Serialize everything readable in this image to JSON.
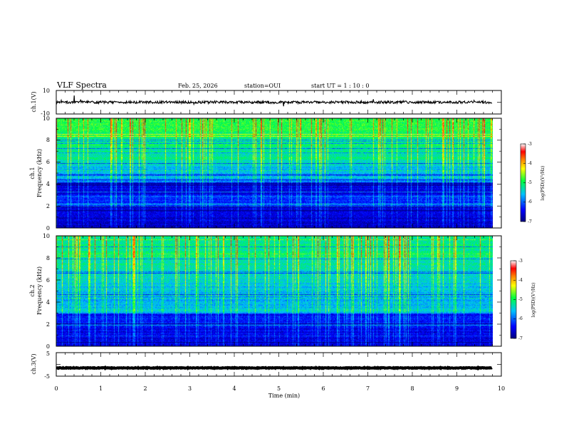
{
  "header": {
    "title": "VLF Spectra",
    "date": "Feb. 25, 2026",
    "station": "station=OUI",
    "start_time": "start  UT =   1 : 10 : 0"
  },
  "colors": {
    "waveform": "#000000",
    "colormap": [
      "#000080",
      "#0000ff",
      "#00c0ff",
      "#00ff40",
      "#ffff00",
      "#ff8000",
      "#ff0000",
      "#ffffff"
    ]
  },
  "chart_data": [
    {
      "type": "line",
      "name": "ch1-waveform",
      "ylabel": "ch.1(V)",
      "ylim": [
        -10,
        10
      ],
      "y_ticklabels": [
        "10",
        "-10"
      ],
      "xlim": [
        0,
        10
      ],
      "baseline": 0,
      "values": []
    },
    {
      "type": "heatmap",
      "name": "ch1-spectrogram",
      "ylabel_line1": "ch.1",
      "ylabel_line2": "Frequency (kHz)",
      "ylim": [
        0,
        10
      ],
      "y_ticks": [
        0,
        2,
        4,
        6,
        8,
        10
      ],
      "y_ticklabels": [
        "0",
        "2",
        "4",
        "6",
        "8",
        "10"
      ],
      "xlim": [
        0,
        10
      ],
      "data_end_min": 9.8,
      "colorbar": {
        "label": "log(PSD)(V²/Hz)",
        "range": [
          -7,
          -3
        ],
        "ticks": [
          "-3",
          "-4",
          "-5",
          "-6",
          "-7"
        ]
      }
    },
    {
      "type": "heatmap",
      "name": "ch2-spectrogram",
      "ylabel_line1": "ch.2",
      "ylabel_line2": "Frequency (kHz)",
      "ylim": [
        0,
        10
      ],
      "y_ticks": [
        0,
        2,
        4,
        6,
        8,
        10
      ],
      "y_ticklabels": [
        "0",
        "2",
        "4",
        "6",
        "8",
        "10"
      ],
      "xlim": [
        0,
        10
      ],
      "data_end_min": 9.8,
      "colorbar": {
        "label": "log(PSD)(V²/Hz)",
        "range": [
          -7,
          -3
        ],
        "ticks": [
          "-3",
          "-4",
          "-5",
          "-6",
          "-7"
        ]
      }
    },
    {
      "type": "line",
      "name": "ch3-waveform",
      "ylabel": "ch.3(V)",
      "ylim": [
        -5,
        5
      ],
      "y_ticklabels": [
        "5",
        "-5"
      ],
      "xlim": [
        0,
        10
      ],
      "baseline": -1.5,
      "values": []
    }
  ],
  "xaxis": {
    "label": "Time (min)",
    "ticks": [
      0,
      1,
      2,
      3,
      4,
      5,
      6,
      7,
      8,
      9,
      10
    ],
    "ticklabels": [
      "0",
      "1",
      "2",
      "3",
      "4",
      "5",
      "6",
      "7",
      "8",
      "9",
      "10"
    ]
  }
}
